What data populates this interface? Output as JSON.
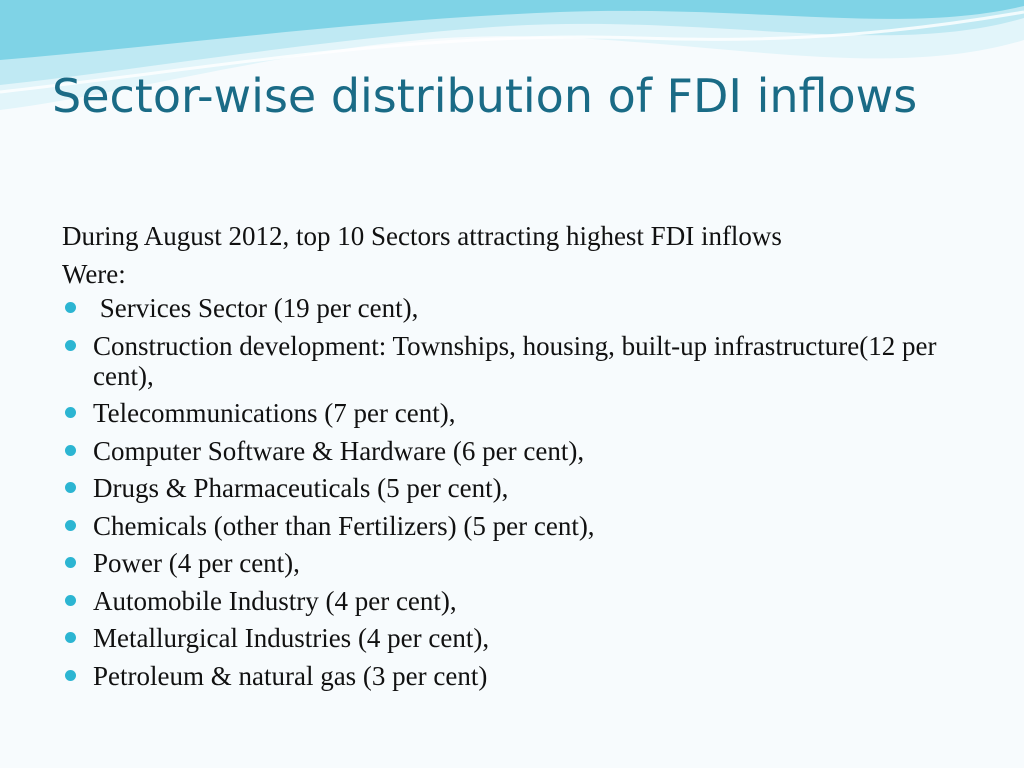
{
  "slide": {
    "title": "Sector-wise distribution of FDI inflows",
    "intro_line_1": "During August 2012, top 10 Sectors attracting highest FDI inflows",
    "intro_line_2": "Were:",
    "bullets": [
      " Services Sector (19 per cent),",
      "Construction development: Townships, housing, built-up infrastructure(12 per cent),",
      "Telecommunications (7 per cent),",
      "Computer Software & Hardware (6 per cent),",
      "Drugs & Pharmaceuticals (5 per cent),",
      "Chemicals (other than Fertilizers) (5 per cent),",
      "Power (4 per cent),",
      "Automobile Industry (4 per cent),",
      "Metallurgical Industries (4 per cent),",
      "Petroleum & natural gas (3 per cent)"
    ]
  },
  "theme": {
    "title_color": "#1a6b86",
    "bullet_color": "#2cb5d2",
    "wave_colors": [
      "#7fd3e6",
      "#bfe9f3",
      "#e2f5fa"
    ]
  }
}
